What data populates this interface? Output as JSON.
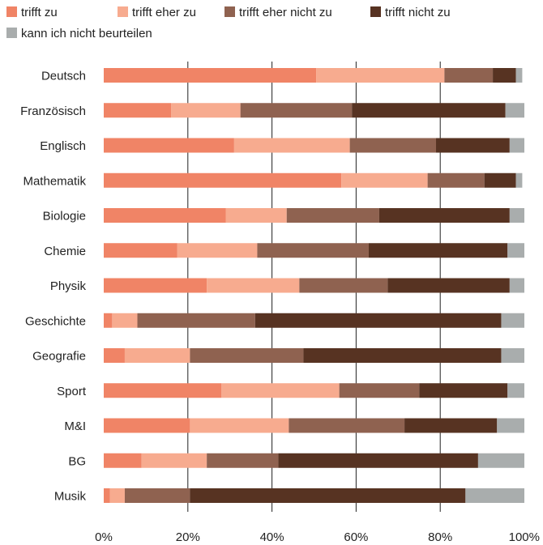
{
  "chart_data": {
    "type": "bar",
    "orientation": "horizontal",
    "stacked": true,
    "percent": true,
    "title": "",
    "xlabel": "",
    "ylabel": "",
    "xlim": [
      0,
      100
    ],
    "x_ticks": [
      "0%",
      "20%",
      "40%",
      "60%",
      "80%",
      "100%"
    ],
    "grid": "vertical",
    "legend_position": "top-left",
    "categories": [
      "Deutsch",
      "Französisch",
      "Englisch",
      "Mathematik",
      "Biologie",
      "Chemie",
      "Physik",
      "Geschichte",
      "Geografie",
      "Sport",
      "M&I",
      "BG",
      "Musik"
    ],
    "series": [
      {
        "name": "trifft zu",
        "color": "#f08466",
        "values": [
          50.5,
          16,
          31,
          56.5,
          29,
          17.5,
          24.5,
          2,
          5,
          28,
          20.5,
          9,
          1.5
        ]
      },
      {
        "name": "trifft eher zu",
        "color": "#f7ab8f",
        "values": [
          30.5,
          16.5,
          27.5,
          20.5,
          14.5,
          19,
          22,
          6,
          15.5,
          28,
          23.5,
          15.5,
          3.5
        ]
      },
      {
        "name": "trifft eher nicht zu",
        "color": "#8f6250",
        "values": [
          11.5,
          26.5,
          20.5,
          13.5,
          22,
          26.5,
          21,
          28,
          27,
          19,
          27.5,
          17,
          15.5
        ]
      },
      {
        "name": "trifft nicht zu",
        "color": "#573322",
        "values": [
          5.5,
          36.5,
          17.5,
          7.5,
          31,
          33,
          29,
          58.5,
          47,
          21,
          22,
          47.5,
          65.5
        ]
      },
      {
        "name": "kann ich nicht beurteilen",
        "color": "#a9adad",
        "values": [
          1.5,
          4.5,
          3.5,
          1.5,
          3.5,
          4,
          3.5,
          5.5,
          5.5,
          4,
          6.5,
          11,
          14
        ]
      }
    ]
  }
}
